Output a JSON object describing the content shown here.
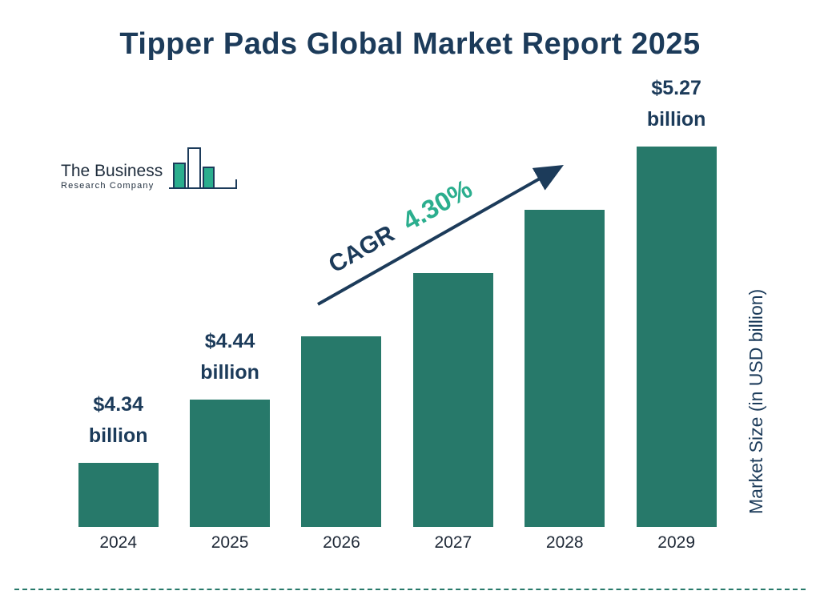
{
  "page": {
    "title": "Tipper Pads Global Market Report 2025"
  },
  "logo": {
    "line1": "The Business",
    "line2": "Research Company"
  },
  "chart_data": {
    "type": "bar",
    "title": "Tipper Pads Global Market Report 2025",
    "ylabel": "Market Size (in USD billion)",
    "categories": [
      "2024",
      "2025",
      "2026",
      "2027",
      "2028",
      "2029"
    ],
    "values": [
      4.34,
      4.44,
      4.63,
      4.83,
      5.04,
      5.27
    ],
    "bar_labels": [
      "$4.34 billion",
      "$4.44 billion",
      "",
      "",
      "",
      "$5.27 billion"
    ],
    "cagr": {
      "label": "CAGR",
      "value": "4.30%"
    },
    "ylim": [
      0,
      5.5
    ],
    "grid": false,
    "legend": false,
    "colors": {
      "bar": "#27796A",
      "accent": "#2BAE8E",
      "navy": "#1C3B5A"
    }
  }
}
